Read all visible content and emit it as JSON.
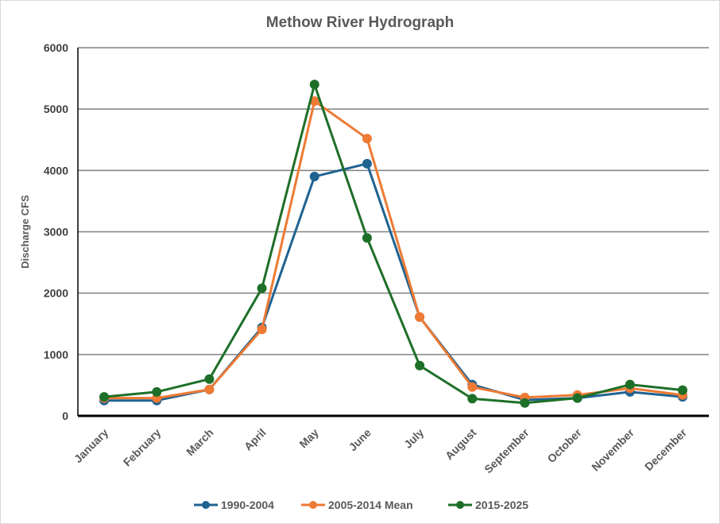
{
  "chart_data": {
    "type": "line",
    "title": "Methow River Hydrograph",
    "xlabel": "",
    "ylabel": "Discharge CFS",
    "ylim": [
      0,
      6000
    ],
    "yticks": [
      0,
      1000,
      2000,
      3000,
      4000,
      5000,
      6000
    ],
    "grid": true,
    "legend_position": "bottom",
    "categories": [
      "January",
      "February",
      "March",
      "April",
      "May",
      "June",
      "July",
      "August",
      "September",
      "October",
      "November",
      "December"
    ],
    "series": [
      {
        "name": "1990-2004",
        "color": "#1f6391",
        "values": [
          250,
          250,
          430,
          1440,
          3900,
          4110,
          1610,
          510,
          260,
          290,
          390,
          310
        ]
      },
      {
        "name": "2005-2014 Mean",
        "color": "#ee7a34",
        "values": [
          290,
          290,
          430,
          1410,
          5130,
          4520,
          1610,
          470,
          300,
          340,
          450,
          340
        ]
      },
      {
        "name": "2015-2025",
        "color": "#1e6f28",
        "values": [
          310,
          390,
          600,
          2080,
          5400,
          2900,
          820,
          280,
          210,
          290,
          510,
          420
        ]
      }
    ]
  }
}
